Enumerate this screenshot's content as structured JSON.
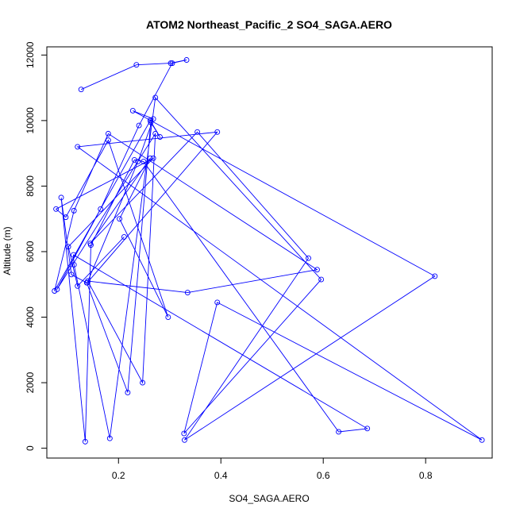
{
  "chart_data": {
    "type": "line",
    "title": "ATOM2 Northeast_Pacific_2 SO4_SAGA.AERO",
    "xlabel": "SO4_SAGA.AERO",
    "ylabel": "Altitude (m)",
    "xlim": [
      0.06,
      0.93
    ],
    "ylim": [
      -300,
      12250
    ],
    "xticks": [
      0.2,
      0.4,
      0.6,
      0.8
    ],
    "xtick_labels": [
      "0.2",
      "0.4",
      "0.6",
      "0.8"
    ],
    "yticks": [
      0,
      2000,
      4000,
      6000,
      8000,
      10000,
      12000
    ],
    "ytick_labels": [
      "0",
      "2000",
      "4000",
      "6000",
      "8000",
      "10000",
      "12000"
    ],
    "color": "#0000ff",
    "grid": false,
    "series": [
      {
        "x": [
          0.127,
          0.235,
          0.302,
          0.333,
          0.305,
          0.24,
          0.165,
          0.08,
          0.272,
          0.247,
          0.14,
          0.335,
          0.588,
          0.18,
          0.113,
          0.075,
          0.262,
          0.281,
          0.263,
          0.218,
          0.138,
          0.108,
          0.088,
          0.135,
          0.146,
          0.231,
          0.249,
          0.63,
          0.686,
          0.112,
          0.113,
          0.183,
          0.272,
          0.596,
          0.328,
          0.393,
          0.91,
          0.12,
          0.393,
          0.139,
          0.238,
          0.268,
          0.228,
          0.818,
          0.329,
          0.571,
          0.354,
          0.145,
          0.262,
          0.202,
          0.297,
          0.18,
          0.097,
          0.078,
          0.268,
          0.102,
          0.12,
          0.211
        ],
        "y": [
          10950,
          11700,
          11750,
          11850,
          11750,
          9850,
          7300,
          4850,
          9600,
          2000,
          5100,
          4750,
          5450,
          9600,
          7250,
          4800,
          10000,
          9500,
          9950,
          1700,
          5050,
          5300,
          7650,
          200,
          6200,
          8800,
          8750,
          500,
          600,
          5900,
          5600,
          300,
          10700,
          5150,
          450,
          4450,
          250,
          9200,
          9650,
          5050,
          8750,
          10050,
          10300,
          5250,
          250,
          5800,
          9650,
          6250,
          8850,
          7000,
          4000,
          9400,
          7050,
          7300,
          8850,
          6150,
          4950,
          6450
        ]
      }
    ]
  }
}
